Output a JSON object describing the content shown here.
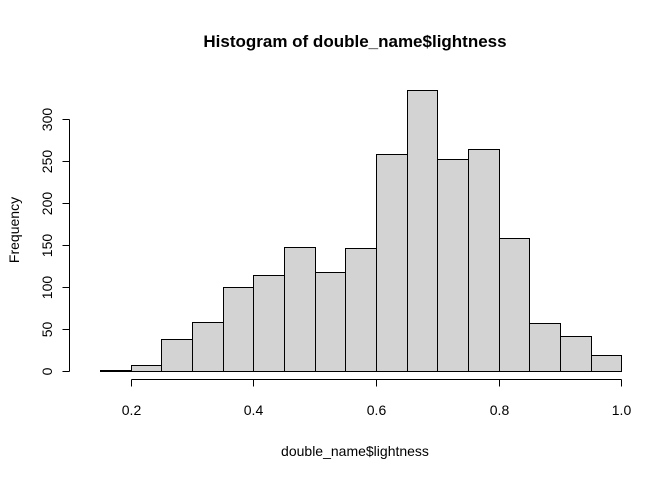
{
  "chart_data": {
    "type": "bar",
    "title": "Histogram of double_name$lightness",
    "xlabel": "double_name$lightness",
    "ylabel": "Frequency",
    "bins": [
      [
        0.15,
        0.2
      ],
      [
        0.2,
        0.25
      ],
      [
        0.25,
        0.3
      ],
      [
        0.3,
        0.35
      ],
      [
        0.35,
        0.4
      ],
      [
        0.4,
        0.45
      ],
      [
        0.45,
        0.5
      ],
      [
        0.5,
        0.55
      ],
      [
        0.55,
        0.6
      ],
      [
        0.6,
        0.65
      ],
      [
        0.65,
        0.7
      ],
      [
        0.7,
        0.75
      ],
      [
        0.75,
        0.8
      ],
      [
        0.8,
        0.85
      ],
      [
        0.85,
        0.9
      ],
      [
        0.9,
        0.95
      ],
      [
        0.95,
        1.0
      ]
    ],
    "values": [
      1,
      7,
      38,
      58,
      100,
      114,
      147,
      117,
      146,
      258,
      334,
      252,
      264,
      158,
      57,
      41,
      19
    ],
    "x_ticks": [
      0.2,
      0.4,
      0.6,
      0.8,
      1.0
    ],
    "x_tick_labels": [
      "0.2",
      "0.4",
      "0.6",
      "0.8",
      "1.0"
    ],
    "y_ticks": [
      0,
      50,
      100,
      150,
      200,
      250,
      300
    ],
    "y_tick_labels": [
      "0",
      "50",
      "100",
      "150",
      "200",
      "250",
      "300"
    ],
    "xlim": [
      0.15,
      1.0
    ],
    "ylim": [
      0,
      300
    ],
    "grid": false,
    "colors": {
      "bar_fill": "#d3d3d3",
      "bar_stroke": "#000000",
      "axis": "#000000",
      "text": "#000000",
      "background": "#ffffff"
    }
  }
}
